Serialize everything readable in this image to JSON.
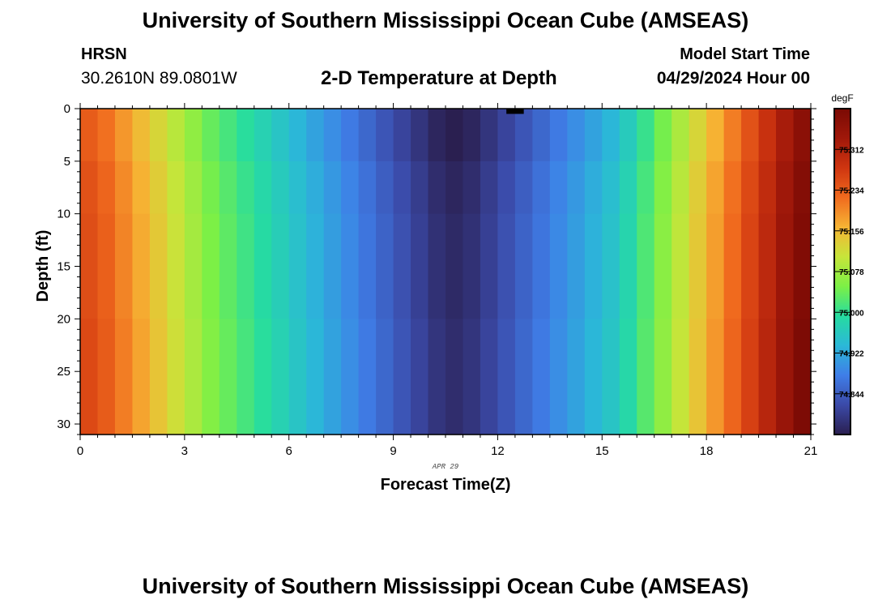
{
  "header": {
    "title": "University of Southern Mississippi Ocean Cube (AMSEAS)",
    "station": "HRSN",
    "coords": "30.2610N  89.0801W",
    "plot_title": "2-D Temperature at Depth",
    "start_label": "Model Start Time",
    "start_value": "04/29/2024 Hour 00"
  },
  "footer": {
    "title": "University of Southern Mississippi Ocean Cube (AMSEAS)"
  },
  "colors": {
    "background": "#ffffff",
    "axis": "#000000",
    "missing": "#000000"
  },
  "chart_data": {
    "type": "heatmap",
    "title": "2-D Temperature at Depth",
    "xlabel": "Forecast Time(Z)",
    "ylabel": "Depth (ft)",
    "date_label": "APR 29",
    "xlim": [
      0,
      21
    ],
    "ylim": [
      0,
      31
    ],
    "x_ticks": [
      0,
      3,
      6,
      9,
      12,
      15,
      18,
      21
    ],
    "y_ticks": [
      0,
      5,
      10,
      15,
      20,
      25,
      30
    ],
    "colorbar": {
      "unit": "degF",
      "min": 74.766,
      "max": 75.39,
      "ticks": [
        "75.312",
        "75.234",
        "75.156",
        "75.078",
        "75.000",
        "74.922",
        "74.844"
      ],
      "palette": [
        "#2a1f50",
        "#3b4aa8",
        "#3f7ee8",
        "#2bb8d8",
        "#26dca0",
        "#7cf046",
        "#c7e53a",
        "#f6b434",
        "#f06a1e",
        "#cf3510",
        "#a0180a",
        "#7a0a04"
      ]
    },
    "time_step": 0.5,
    "column_values": [
      75.25,
      75.23,
      75.2,
      75.17,
      75.14,
      75.11,
      75.08,
      75.05,
      75.03,
      75.01,
      74.99,
      74.97,
      74.95,
      74.93,
      74.91,
      74.89,
      74.87,
      74.85,
      74.83,
      74.81,
      74.79,
      74.78,
      74.79,
      74.81,
      74.83,
      74.85,
      74.87,
      74.89,
      74.91,
      74.93,
      74.95,
      74.98,
      75.02,
      75.06,
      75.1,
      75.14,
      75.18,
      75.22,
      75.26,
      75.3,
      75.34,
      75.38
    ],
    "depth_offsets": [
      {
        "depth_range": [
          0,
          5
        ],
        "offset": -0.015
      },
      {
        "depth_range": [
          5,
          10
        ],
        "offset": -0.005
      },
      {
        "depth_range": [
          10,
          20
        ],
        "offset": 0.0
      },
      {
        "depth_range": [
          20,
          31
        ],
        "offset": 0.005
      }
    ],
    "missing_cells": [
      {
        "time_range": [
          12.25,
          12.75
        ],
        "depth_range": [
          0,
          0.5
        ]
      }
    ]
  }
}
